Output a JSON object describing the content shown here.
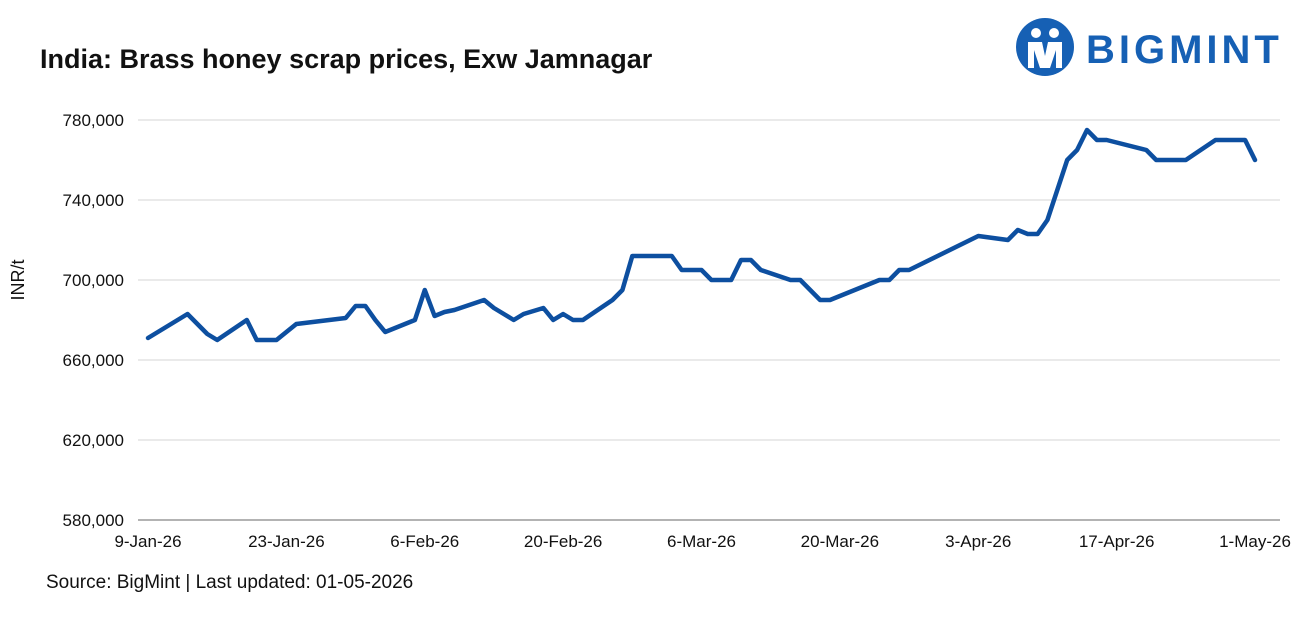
{
  "brand": {
    "name": "BIGMINT",
    "color": "#1660b4"
  },
  "footer": {
    "source_text": "Source: BigMint | Last updated: 01-05-2026"
  },
  "chart_data": {
    "type": "line",
    "title": "India: Brass honey scrap prices, Exw Jamnagar",
    "ylabel": "INR/t",
    "xlabel": "",
    "ylim": [
      580000,
      780000
    ],
    "yticks": [
      580000,
      620000,
      660000,
      700000,
      740000,
      780000
    ],
    "ytick_labels": [
      "580,000",
      "620,000",
      "660,000",
      "700,000",
      "740,000",
      "780,000"
    ],
    "xlim": [
      "2026-01-09",
      "2026-05-01"
    ],
    "xticks": [
      "2026-01-09",
      "2026-01-23",
      "2026-02-06",
      "2026-02-20",
      "2026-03-06",
      "2026-03-20",
      "2026-04-03",
      "2026-04-17",
      "2026-05-01"
    ],
    "xtick_labels": [
      "9-Jan-26",
      "23-Jan-26",
      "6-Feb-26",
      "20-Feb-26",
      "6-Mar-26",
      "20-Mar-26",
      "3-Apr-26",
      "17-Apr-26",
      "1-May-26"
    ],
    "grid": "horizontal",
    "line_color": "#0d4fa0",
    "series": [
      {
        "x": [
          "2026-01-09",
          "2026-01-13",
          "2026-01-15",
          "2026-01-16",
          "2026-01-19",
          "2026-01-20",
          "2026-01-22",
          "2026-01-23",
          "2026-01-24",
          "2026-01-29",
          "2026-01-30",
          "2026-01-31",
          "2026-02-01",
          "2026-02-02",
          "2026-02-05",
          "2026-02-06",
          "2026-02-07",
          "2026-02-08",
          "2026-02-09",
          "2026-02-12",
          "2026-02-13",
          "2026-02-15",
          "2026-02-16",
          "2026-02-18",
          "2026-02-19",
          "2026-02-20",
          "2026-02-21",
          "2026-02-22",
          "2026-02-25",
          "2026-02-26",
          "2026-02-27",
          "2026-03-03",
          "2026-03-04",
          "2026-03-06",
          "2026-03-07",
          "2026-03-09",
          "2026-03-10",
          "2026-03-11",
          "2026-03-12",
          "2026-03-15",
          "2026-03-16",
          "2026-03-18",
          "2026-03-19",
          "2026-03-24",
          "2026-03-25",
          "2026-03-26",
          "2026-03-27",
          "2026-04-03",
          "2026-04-06",
          "2026-04-07",
          "2026-04-08",
          "2026-04-09",
          "2026-04-10",
          "2026-04-12",
          "2026-04-13",
          "2026-04-14",
          "2026-04-15",
          "2026-04-16",
          "2026-04-20",
          "2026-04-21",
          "2026-04-24",
          "2026-04-27",
          "2026-04-30",
          "2026-05-01"
        ],
        "values": [
          671000,
          683000,
          673000,
          670000,
          680000,
          670000,
          670000,
          674000,
          678000,
          681000,
          687000,
          687000,
          680000,
          674000,
          680000,
          695000,
          682000,
          684000,
          685000,
          690000,
          686000,
          680000,
          683000,
          686000,
          680000,
          683000,
          680000,
          680000,
          690000,
          695000,
          712000,
          712000,
          705000,
          705000,
          700000,
          700000,
          710000,
          710000,
          705000,
          700000,
          700000,
          690000,
          690000,
          700000,
          700000,
          705000,
          705000,
          722000,
          720000,
          725000,
          723000,
          723000,
          730000,
          760000,
          765000,
          775000,
          770000,
          770000,
          765000,
          760000,
          760000,
          770000,
          770000,
          760000
        ]
      }
    ]
  }
}
